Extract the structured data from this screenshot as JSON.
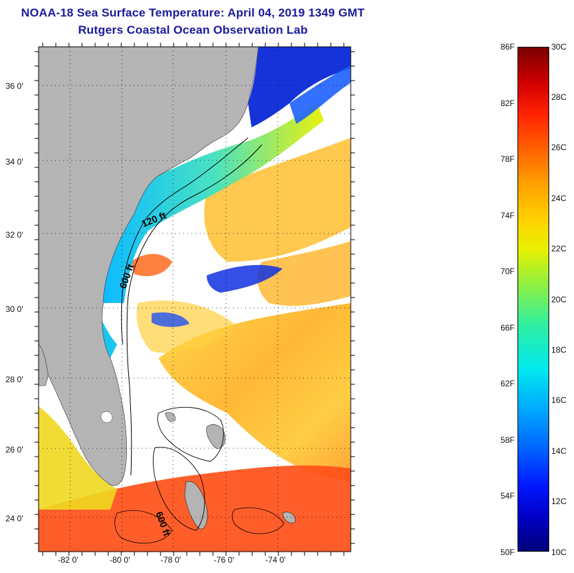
{
  "header": {
    "title": "NOAA-18 Sea Surface Temperature:  April 04, 2019 1349 GMT",
    "subtitle": "Rutgers Coastal Ocean Observation Lab"
  },
  "map": {
    "lat_labels": [
      "36 0'",
      "34 0'",
      "32 0'",
      "30 0'",
      "28 0'",
      "26 0'",
      "24 0'"
    ],
    "lon_labels": [
      "-82 0'",
      "-80 0'",
      "-78 0'",
      "-76 0'",
      "-74 0'"
    ],
    "contour_labels": [
      "120 ft",
      "600 ft",
      "600 ft"
    ]
  },
  "colorbar": {
    "f_labels": [
      "86F",
      "82F",
      "78F",
      "74F",
      "70F",
      "66F",
      "62F",
      "58F",
      "54F",
      "50F"
    ],
    "c_labels": [
      "30C",
      "28C",
      "26C",
      "24C",
      "22C",
      "20C",
      "18C",
      "16C",
      "14C",
      "12C",
      "10C"
    ]
  },
  "colors": {
    "title": "#1a1a9a",
    "land": "#b4b4b4",
    "warm": "#ff5a1a",
    "cold": "#0a28d8"
  }
}
